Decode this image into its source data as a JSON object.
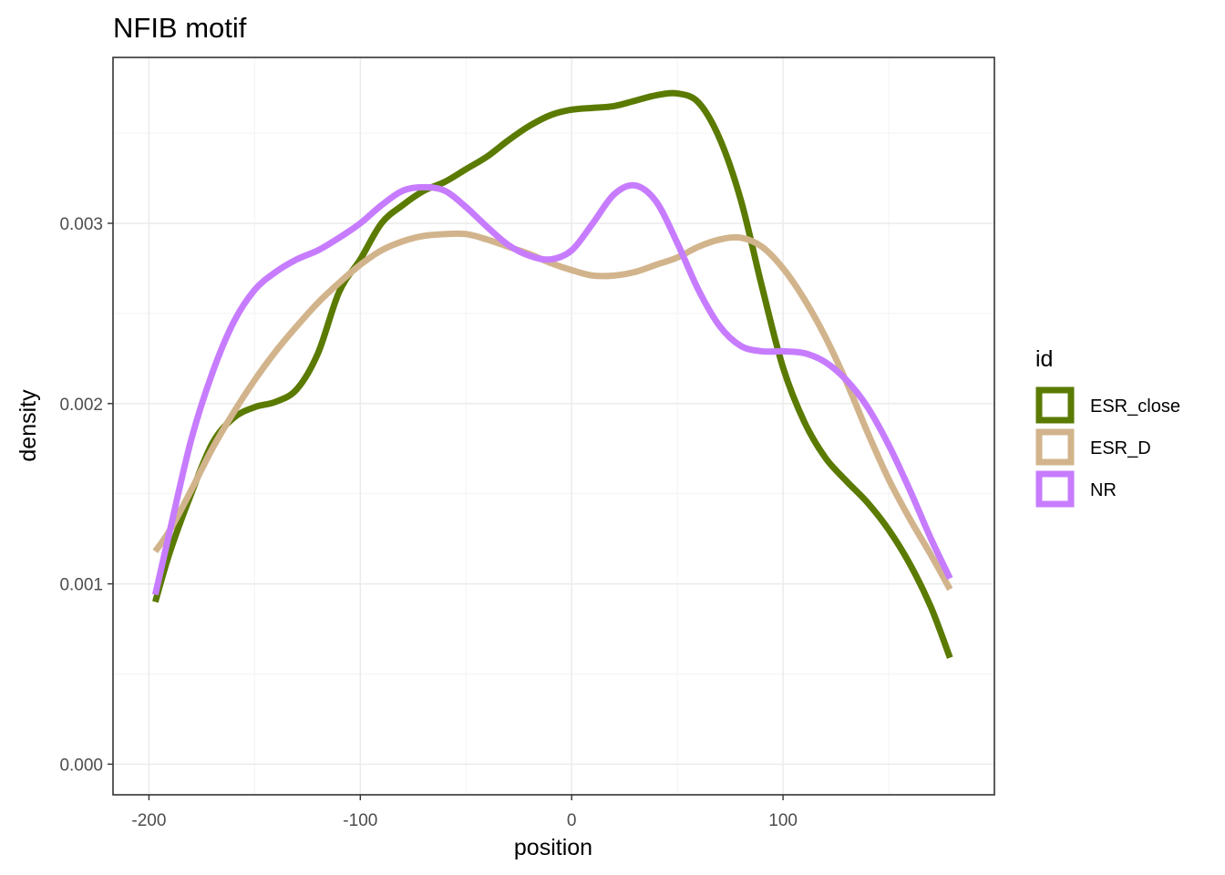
{
  "chart_data": {
    "type": "line",
    "title": "NFIB motif",
    "xlabel": "position",
    "ylabel": "density",
    "xlim": [
      -217,
      200
    ],
    "ylim": [
      -0.00017,
      0.00392
    ],
    "x_ticks": [
      -200,
      -100,
      0,
      100
    ],
    "x_tick_labels": [
      "-200",
      "-100",
      "0",
      "100"
    ],
    "x_minor_ticks": [
      -150,
      -50,
      50,
      150
    ],
    "y_ticks": [
      0.0,
      0.001,
      0.002,
      0.003
    ],
    "y_tick_labels": [
      "0.000",
      "0.001",
      "0.002",
      "0.003"
    ],
    "y_minor_ticks": [
      0.0005,
      0.0015,
      0.0025,
      0.0035
    ],
    "grid": true,
    "legend": {
      "title": "id",
      "position": "right"
    },
    "series": [
      {
        "name": "ESR_close",
        "color": "#5a7a00",
        "x": [
          -197,
          -190,
          -180,
          -170,
          -160,
          -150,
          -140,
          -130,
          -120,
          -110,
          -100,
          -90,
          -80,
          -70,
          -60,
          -50,
          -40,
          -30,
          -20,
          -10,
          0,
          10,
          20,
          30,
          40,
          50,
          60,
          70,
          80,
          90,
          100,
          110,
          120,
          130,
          140,
          150,
          160,
          170,
          179
        ],
        "values": [
          0.0009,
          0.00118,
          0.0015,
          0.00178,
          0.00192,
          0.00198,
          0.00201,
          0.00208,
          0.00228,
          0.00262,
          0.0028,
          0.003,
          0.0031,
          0.00318,
          0.00323,
          0.0033,
          0.00337,
          0.00346,
          0.00354,
          0.0036,
          0.00363,
          0.00364,
          0.00365,
          0.00368,
          0.00371,
          0.00372,
          0.00367,
          0.00347,
          0.00313,
          0.00265,
          0.0022,
          0.0019,
          0.0017,
          0.00157,
          0.00145,
          0.0013,
          0.00111,
          0.00087,
          0.00059
        ]
      },
      {
        "name": "ESR_D",
        "color": "#d2b48c",
        "x": [
          -197,
          -190,
          -180,
          -170,
          -160,
          -150,
          -140,
          -130,
          -120,
          -110,
          -100,
          -90,
          -80,
          -70,
          -60,
          -50,
          -40,
          -30,
          -20,
          -10,
          0,
          10,
          20,
          30,
          40,
          50,
          60,
          70,
          80,
          90,
          100,
          110,
          120,
          130,
          140,
          150,
          160,
          170,
          179
        ],
        "values": [
          0.00118,
          0.0013,
          0.00152,
          0.00175,
          0.00195,
          0.00213,
          0.00229,
          0.00243,
          0.00256,
          0.00267,
          0.00277,
          0.00285,
          0.0029,
          0.00293,
          0.00294,
          0.00294,
          0.00291,
          0.00287,
          0.00283,
          0.00278,
          0.00274,
          0.00271,
          0.00271,
          0.00273,
          0.00277,
          0.00281,
          0.00287,
          0.00291,
          0.00292,
          0.00287,
          0.00275,
          0.00258,
          0.00237,
          0.00212,
          0.00184,
          0.00158,
          0.00136,
          0.00116,
          0.00097
        ]
      },
      {
        "name": "NR",
        "color": "#c77cff",
        "x": [
          -197,
          -190,
          -180,
          -170,
          -160,
          -150,
          -140,
          -130,
          -120,
          -110,
          -100,
          -90,
          -80,
          -70,
          -60,
          -50,
          -40,
          -30,
          -20,
          -10,
          0,
          10,
          20,
          30,
          40,
          50,
          60,
          70,
          80,
          90,
          100,
          110,
          120,
          130,
          140,
          150,
          160,
          170,
          179
        ],
        "values": [
          0.00094,
          0.0013,
          0.0018,
          0.00217,
          0.00245,
          0.00263,
          0.00273,
          0.0028,
          0.00285,
          0.00292,
          0.003,
          0.0031,
          0.00318,
          0.0032,
          0.00318,
          0.00309,
          0.00298,
          0.00288,
          0.00282,
          0.0028,
          0.00285,
          0.003,
          0.00316,
          0.00321,
          0.00312,
          0.00289,
          0.00263,
          0.00243,
          0.00232,
          0.00229,
          0.00229,
          0.00228,
          0.00223,
          0.00213,
          0.00198,
          0.00177,
          0.00152,
          0.00125,
          0.00103
        ]
      }
    ]
  }
}
